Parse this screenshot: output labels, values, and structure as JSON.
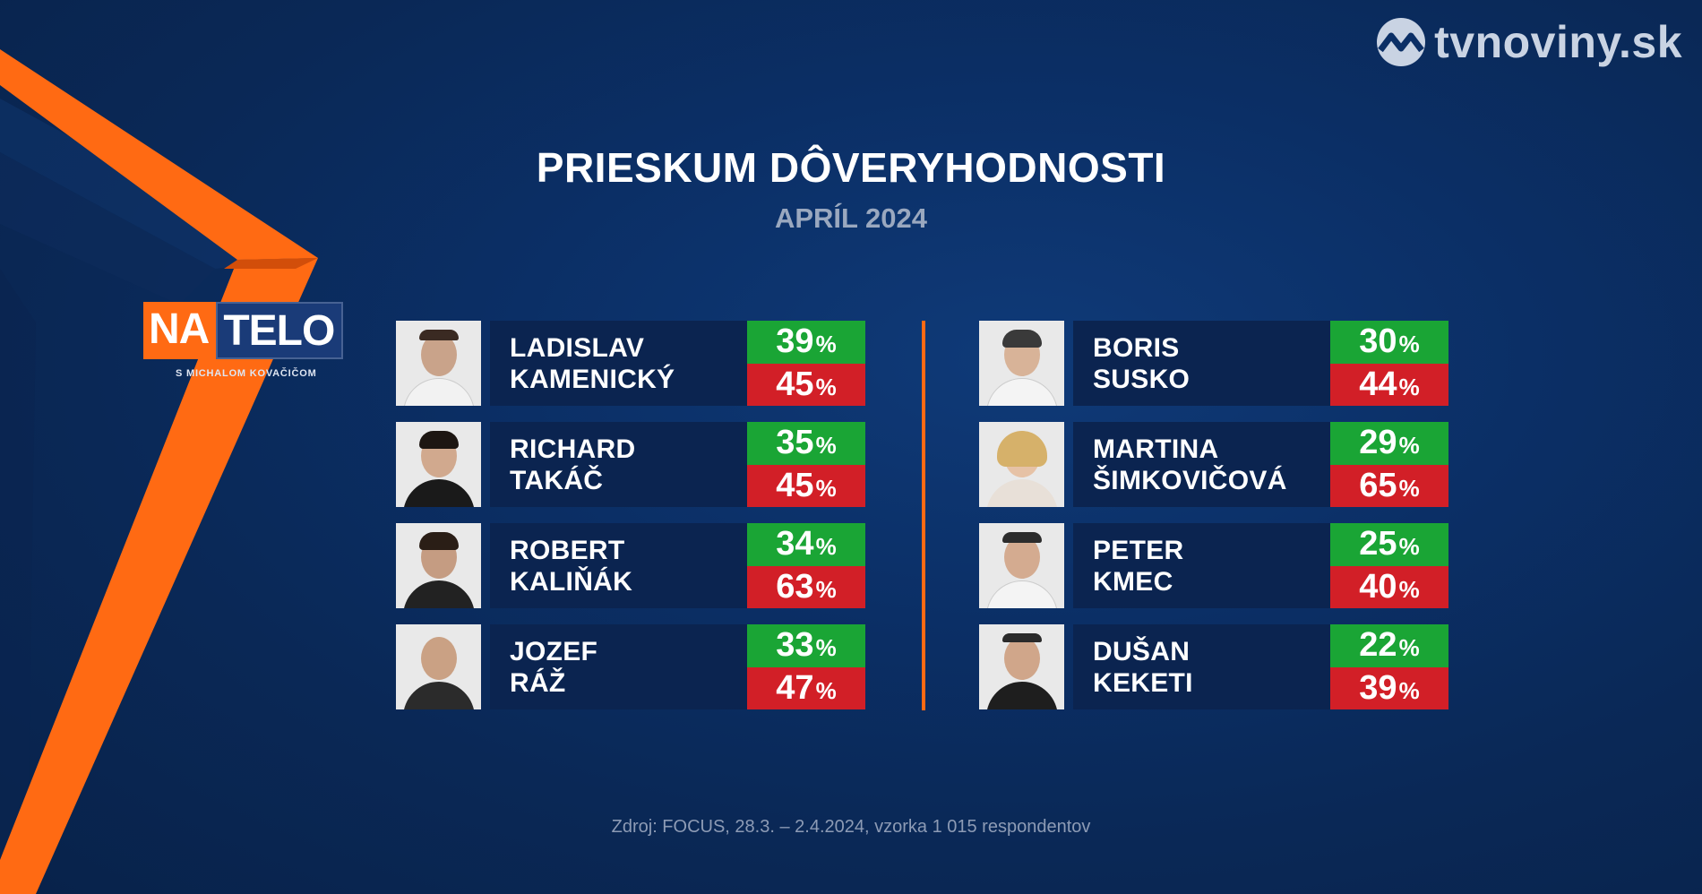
{
  "brand": {
    "site": "tvnoviny.sk",
    "icon": "tvnoviny-logo-icon"
  },
  "show": {
    "logo_na": "NA",
    "logo_telo": "TELO",
    "subtitle": "S MICHALOM KOVAČIČOM"
  },
  "header": {
    "title": "PRIESKUM DÔVERYHODNOSTI",
    "subtitle": "APRÍL 2024"
  },
  "percent_sign": "%",
  "left": [
    {
      "first": "LADISLAV",
      "last": "KAMENICKÝ",
      "trust": "39",
      "distrust": "45"
    },
    {
      "first": "RICHARD",
      "last": "TAKÁČ",
      "trust": "35",
      "distrust": "45"
    },
    {
      "first": "ROBERT",
      "last": "KALIŇÁK",
      "trust": "34",
      "distrust": "63"
    },
    {
      "first": "JOZEF",
      "last": "RÁŽ",
      "trust": "33",
      "distrust": "47"
    }
  ],
  "right": [
    {
      "first": "BORIS",
      "last": "SUSKO",
      "trust": "30",
      "distrust": "44"
    },
    {
      "first": "MARTINA",
      "last": "ŠIMKOVIČOVÁ",
      "trust": "29",
      "distrust": "65"
    },
    {
      "first": "PETER",
      "last": "KMEC",
      "trust": "25",
      "distrust": "40"
    },
    {
      "first": "DUŠAN",
      "last": "KEKETI",
      "trust": "22",
      "distrust": "39"
    }
  ],
  "colors": {
    "trust": "#1aa535",
    "distrust": "#d21f27",
    "accent": "#ff6a13"
  },
  "source": "Zdroj: FOCUS, 28.3. – 2.4.2024, vzorka 1 015 respondentov"
}
